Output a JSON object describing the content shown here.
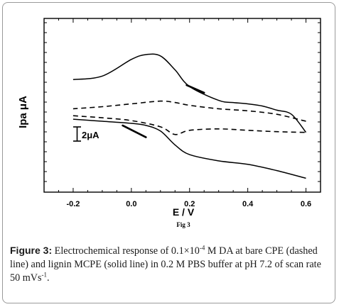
{
  "chart_data": {
    "type": "line",
    "xlabel": "E / V",
    "ylabel": "Ipa μA",
    "xlim": [
      -0.3,
      0.65
    ],
    "x_ticks": [
      "-0.2",
      "0.0",
      "0.2",
      "0.4",
      "0.6"
    ],
    "figure_tag": "Fig 3",
    "scale_bar_label": "2μA",
    "series": [
      {
        "style": "solid",
        "segment": "forward",
        "x": [
          -0.2,
          -0.1,
          0.0,
          0.05,
          0.1,
          0.15,
          0.2,
          0.3,
          0.4,
          0.5,
          0.6
        ],
        "y": [
          -0.75,
          -0.9,
          -1.05,
          -1.2,
          -1.6,
          -2.6,
          -3.3,
          -3.75,
          -4.0,
          -4.45,
          -5.0
        ]
      },
      {
        "style": "solid",
        "segment": "reverse",
        "x": [
          0.6,
          0.55,
          0.5,
          0.45,
          0.4,
          0.35,
          0.3,
          0.2,
          0.15,
          0.1,
          0.05,
          0.0,
          -0.1,
          -0.2
        ],
        "y": [
          -1.7,
          -0.4,
          -0.1,
          0.2,
          0.35,
          0.45,
          0.6,
          1.6,
          2.8,
          3.8,
          3.9,
          3.55,
          2.35,
          2.1
        ]
      },
      {
        "style": "dashed",
        "segment": "forward",
        "x": [
          -0.2,
          -0.1,
          0.0,
          0.1,
          0.15,
          0.2,
          0.3,
          0.4,
          0.5,
          0.6
        ],
        "y": [
          -0.5,
          -0.65,
          -0.85,
          -1.3,
          -1.85,
          -1.55,
          -1.45,
          -1.55,
          -1.65,
          -1.7
        ]
      },
      {
        "style": "dashed",
        "segment": "reverse",
        "x": [
          0.6,
          0.5,
          0.4,
          0.3,
          0.2,
          0.15,
          0.1,
          0.0,
          -0.1,
          -0.2
        ],
        "y": [
          -0.9,
          -0.4,
          -0.15,
          0.0,
          0.25,
          0.45,
          0.55,
          0.35,
          0.15,
          0.0
        ]
      }
    ],
    "sweep_arrows": [
      {
        "x": [
          0.19,
          0.25
        ],
        "y": [
          1.7,
          1.15
        ]
      },
      {
        "x": [
          -0.03,
          0.05
        ],
        "y": [
          -1.2,
          -2.05
        ]
      }
    ]
  },
  "caption": {
    "label": "Figure 3:",
    "text_1": " Electrochemical response of 0.1×10",
    "exp_1": "-4",
    "text_2": " M DA at bare CPE (dashed line) and lignin MCPE (solid line) in 0.2 M PBS buffer at pH 7.2 of scan rate 50 mVs",
    "exp_2": "-1",
    "text_3": "."
  }
}
